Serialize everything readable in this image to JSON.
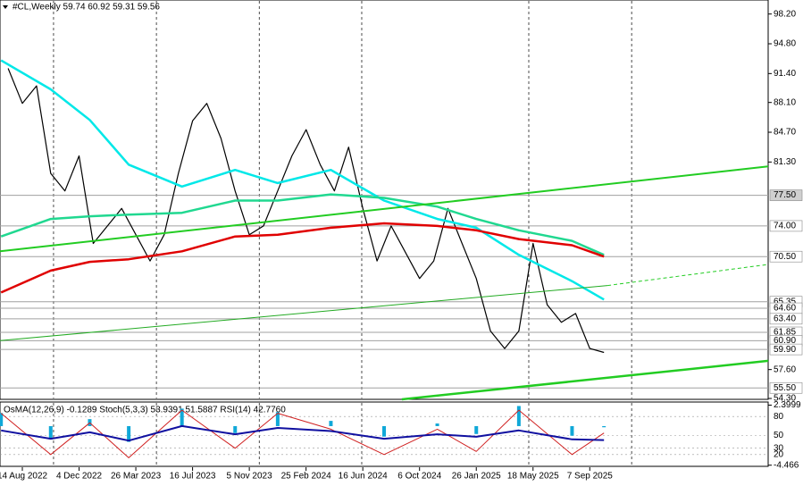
{
  "chart_data": [
    {
      "type": "line",
      "title": "#CL,Weekly  59.74 60.92 59.31 59.56",
      "xlim": [
        -6.3,
        210.3
      ],
      "ylim": [
        54.2,
        99.8
      ],
      "xticks": [
        {
          "value": 0,
          "label": "14 Aug 2022"
        },
        {
          "value": 16,
          "label": "4 Dec 2022"
        },
        {
          "value": 32,
          "label": "26 Mar 2023"
        },
        {
          "value": 48,
          "label": "16 Jul 2023"
        },
        {
          "value": 64,
          "label": "5 Nov 2023"
        },
        {
          "value": 80,
          "label": "25 Feb 2024"
        },
        {
          "value": 96,
          "label": "16 Jun 2024"
        },
        {
          "value": 112,
          "label": "6 Oct 2024"
        },
        {
          "value": 128,
          "label": "26 Jan 2025"
        },
        {
          "value": 144,
          "label": "18 May 2025"
        },
        {
          "value": 160,
          "label": "7 Sep 2025"
        }
      ],
      "xgrid": [
        8.8,
        37.8,
        66.8,
        95.7,
        142.8,
        171.8
      ],
      "yticks": [
        {
          "value": 98.2,
          "label": "98.20"
        },
        {
          "value": 94.8,
          "label": "94.80"
        },
        {
          "value": 91.4,
          "label": "91.40"
        },
        {
          "value": 88.1,
          "label": "88.10"
        },
        {
          "value": 84.7,
          "label": "84.70"
        },
        {
          "value": 81.3,
          "label": "81.30"
        },
        {
          "value": 57.6,
          "label": "57.60"
        },
        {
          "value": 54.3,
          "label": "54.30"
        }
      ],
      "levels": [
        {
          "value": 77.5,
          "label": "77.50"
        },
        {
          "value": 74.0,
          "label": "74.00"
        },
        {
          "value": 70.5,
          "label": "70.50"
        },
        {
          "value": 65.35,
          "label": "65.35"
        },
        {
          "value": 64.6,
          "label": "64.60"
        },
        {
          "value": 63.4,
          "label": "63.40"
        },
        {
          "value": 61.85,
          "label": "61.85"
        },
        {
          "value": 60.9,
          "label": "60.90"
        },
        {
          "value": 59.9,
          "label": "59.90"
        },
        {
          "value": 55.5,
          "label": "55.50"
        }
      ],
      "level_color": "#a0a0a0",
      "series": [
        {
          "color": "#000000",
          "width": 1.2,
          "x": [
            -4,
            0,
            4,
            8,
            12,
            16,
            20,
            24,
            28,
            32,
            36,
            40,
            44,
            48,
            52,
            56,
            60,
            64,
            68,
            72,
            76,
            80,
            84,
            88,
            92,
            96,
            100,
            104,
            108,
            112,
            116,
            120,
            124,
            128,
            132,
            136,
            140,
            144,
            148,
            152,
            156,
            160,
            164
          ],
          "values": [
            92,
            88,
            90,
            80,
            78,
            82,
            72,
            74,
            76,
            73,
            70,
            73,
            80,
            86,
            88,
            84,
            78,
            73,
            74,
            78,
            82,
            85,
            81,
            78,
            83,
            76,
            70,
            74,
            71,
            68,
            70,
            76,
            72,
            68,
            62,
            60,
            62,
            72,
            65,
            63,
            64,
            60,
            59.56
          ]
        },
        {
          "color": "#00e8e8",
          "width": 2.5,
          "x": [
            -6,
            8,
            19,
            30,
            45,
            60,
            72,
            87,
            102,
            117,
            128,
            140,
            155,
            164
          ],
          "values": [
            92.9,
            89.6,
            86.1,
            81.0,
            78.5,
            80.4,
            78.9,
            80.4,
            76.9,
            74.8,
            73.8,
            70.7,
            67.7,
            65.6
          ]
        },
        {
          "color": "#20d890",
          "width": 2.5,
          "x": [
            -6,
            8,
            19,
            30,
            45,
            60,
            72,
            87,
            102,
            117,
            128,
            140,
            155,
            164
          ],
          "values": [
            72.8,
            74.8,
            75.1,
            75.3,
            75.5,
            76.9,
            76.9,
            77.6,
            77.2,
            76.2,
            74.8,
            73.5,
            72.3,
            70.7
          ]
        },
        {
          "color": "#e00000",
          "width": 2.5,
          "x": [
            -6,
            8,
            19,
            30,
            45,
            60,
            72,
            87,
            102,
            117,
            128,
            140,
            155,
            164
          ],
          "values": [
            66.4,
            68.9,
            69.9,
            70.2,
            71.1,
            72.8,
            73.0,
            73.8,
            74.3,
            74.0,
            73.5,
            72.5,
            71.8,
            70.5
          ]
        },
        {
          "color": "#22cc22",
          "width": 2,
          "x": [
            -6.3,
            210.3
          ],
          "values": [
            71.1,
            80.8
          ]
        },
        {
          "color": "#22aa22",
          "width": 1,
          "x": [
            -6.3,
            165
          ],
          "values": [
            60.9,
            67.2
          ]
        },
        {
          "color": "#22cc22",
          "width": 1,
          "dash": true,
          "x": [
            165,
            210.3
          ],
          "values": [
            67.2,
            69.6
          ]
        },
        {
          "color": "#22cc22",
          "width": 2.5,
          "x": [
            107,
            210.3
          ],
          "values": [
            54.2,
            58.6
          ]
        }
      ]
    },
    {
      "type": "line",
      "title": "OsMA(12,26,9) -0.1289 Stoch(5,3,3) 53.9391 51.5887 RSI(14) 42.7760",
      "xlim": [
        -6.3,
        210.3
      ],
      "ylim": [
        0,
        100
      ],
      "yticks": [
        80,
        50,
        30,
        20
      ],
      "y2lim": [
        -4.7,
        2.55
      ],
      "y2ticks": [
        2.3999,
        -4.466
      ],
      "series": [
        {
          "type": "bar",
          "axis": "y2",
          "color": "#10a8d8",
          "x": [
            -6,
            8,
            19,
            30,
            45,
            60,
            72,
            87,
            102,
            117,
            128,
            140,
            155,
            164
          ],
          "values": [
            1.5,
            -1.5,
            0.8,
            -1.8,
            2,
            -0.8,
            1.6,
            0.6,
            -1.2,
            0.3,
            -0.9,
            2.3,
            -1.1,
            -0.1289
          ]
        },
        {
          "color": "#d02020",
          "width": 1,
          "x": [
            -6,
            8,
            19,
            30,
            45,
            60,
            72,
            87,
            102,
            117,
            128,
            140,
            155,
            164
          ],
          "values": [
            85,
            20,
            70,
            15,
            90,
            30,
            85,
            60,
            20,
            60,
            25,
            90,
            20,
            53.9391
          ]
        },
        {
          "color": "#1010a0",
          "width": 2,
          "x": [
            -6,
            8,
            19,
            30,
            45,
            60,
            72,
            87,
            102,
            117,
            128,
            140,
            155,
            164
          ],
          "values": [
            58,
            45,
            55,
            42,
            65,
            52,
            62,
            57,
            45,
            52,
            48,
            58,
            44,
            42.776
          ]
        }
      ]
    }
  ]
}
